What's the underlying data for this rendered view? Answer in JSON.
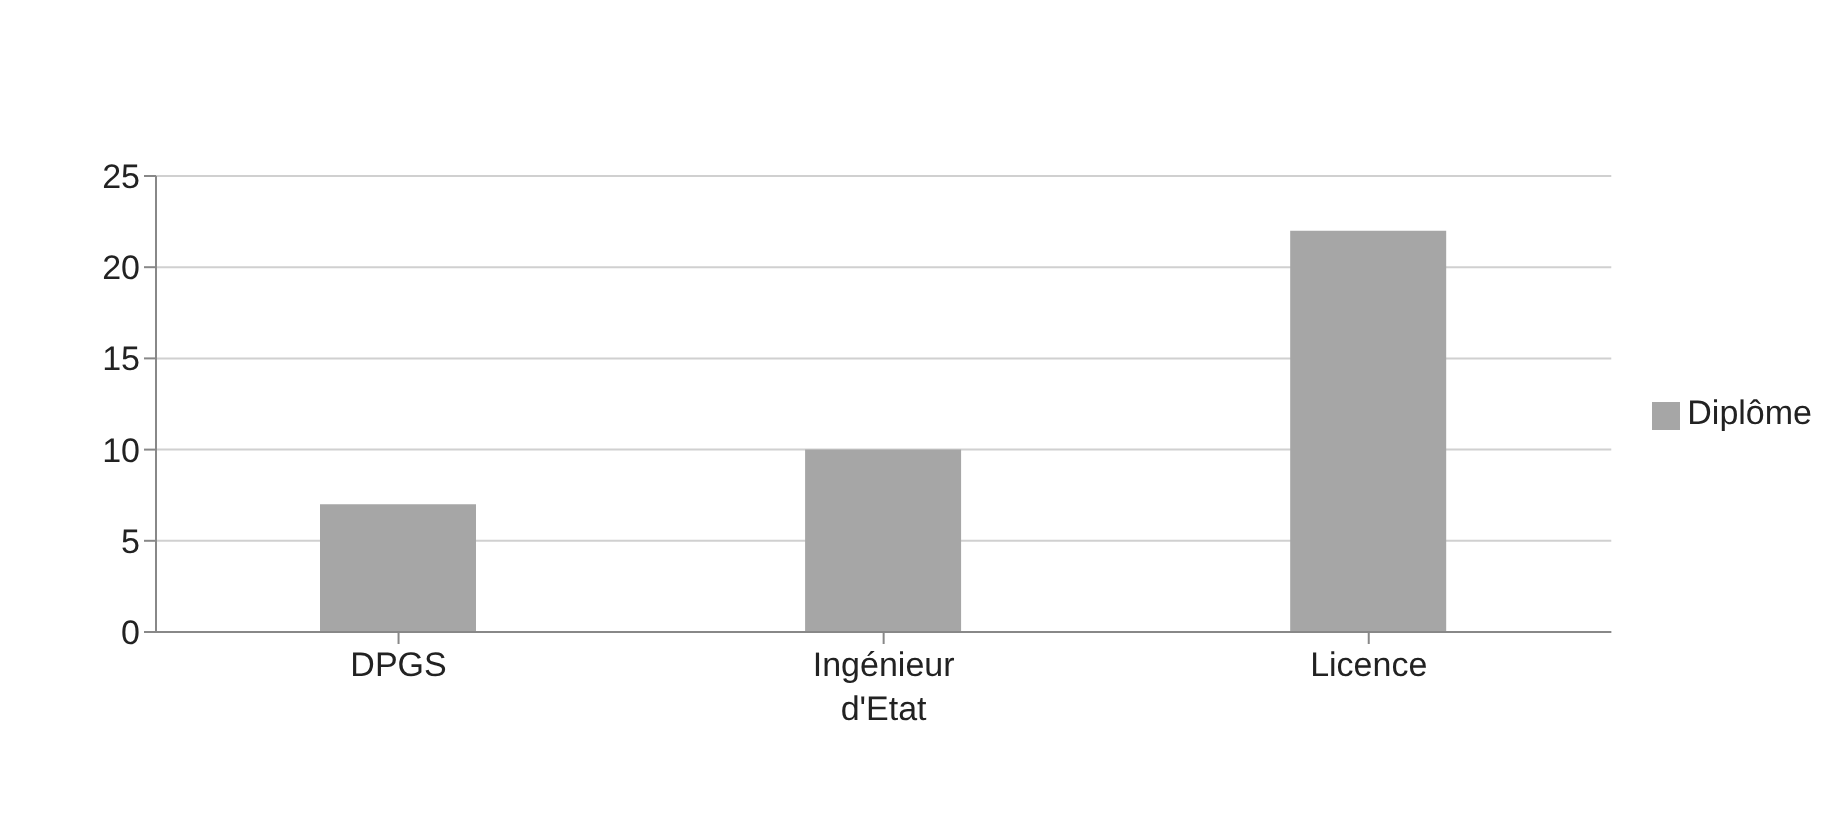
{
  "chart_data": {
    "type": "bar",
    "categories": [
      "DPGS",
      "Ingénieur d'Etat",
      "Licence"
    ],
    "series": [
      {
        "name": "Diplôme",
        "color": "#a6a6a6",
        "values": [
          7,
          10,
          22
        ]
      }
    ],
    "ylim": [
      0,
      25
    ],
    "yticks": [
      0,
      5,
      10,
      15,
      20,
      25
    ],
    "grid": "y",
    "legend": "right"
  }
}
